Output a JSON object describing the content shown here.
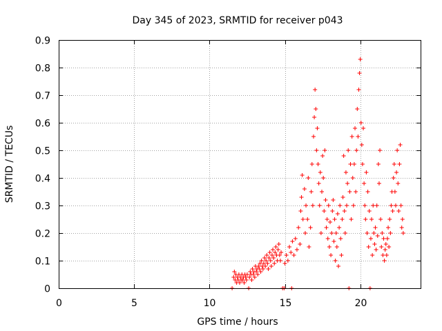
{
  "chart_data": {
    "type": "scatter",
    "title": "Day 345 of 2023, SRMTID for receiver p043",
    "xlabel": "GPS time / hours",
    "ylabel": "SRMTID / TECUs",
    "xlim": [
      0,
      24
    ],
    "ylim": [
      0,
      0.9
    ],
    "grid": true,
    "legend": "none",
    "marker": "plus",
    "color": "#ff0000",
    "x_ticks": [
      "0",
      "5",
      "10",
      "15",
      "20"
    ],
    "x_tick_values": [
      0,
      5,
      10,
      15,
      20
    ],
    "y_ticks": [
      "0",
      "0.1",
      "0.2",
      "0.3",
      "0.4",
      "0.5",
      "0.6",
      "0.7",
      "0.8",
      "0.9"
    ],
    "y_tick_values": [
      0,
      0.1,
      0.2,
      0.3,
      0.4,
      0.5,
      0.6,
      0.7,
      0.8,
      0.9
    ],
    "series": [
      {
        "name": "SRMTID",
        "points": [
          [
            11.5,
            0.0
          ],
          [
            11.6,
            0.04
          ],
          [
            11.65,
            0.06
          ],
          [
            11.7,
            0.03
          ],
          [
            11.75,
            0.05
          ],
          [
            11.8,
            0.02
          ],
          [
            11.85,
            0.04
          ],
          [
            11.9,
            0.03
          ],
          [
            11.95,
            0.05
          ],
          [
            12.0,
            0.02
          ],
          [
            12.05,
            0.04
          ],
          [
            12.1,
            0.03
          ],
          [
            12.15,
            0.05
          ],
          [
            12.2,
            0.03
          ],
          [
            12.25,
            0.04
          ],
          [
            12.3,
            0.02
          ],
          [
            12.35,
            0.05
          ],
          [
            12.4,
            0.04
          ],
          [
            12.45,
            0.03
          ],
          [
            12.5,
            0.05
          ],
          [
            12.6,
            0.0
          ],
          [
            12.65,
            0.04
          ],
          [
            12.7,
            0.06
          ],
          [
            12.75,
            0.05
          ],
          [
            12.8,
            0.03
          ],
          [
            12.85,
            0.07
          ],
          [
            12.9,
            0.05
          ],
          [
            12.95,
            0.06
          ],
          [
            13.0,
            0.04
          ],
          [
            13.05,
            0.08
          ],
          [
            13.1,
            0.06
          ],
          [
            13.15,
            0.07
          ],
          [
            13.2,
            0.05
          ],
          [
            13.25,
            0.08
          ],
          [
            13.3,
            0.07
          ],
          [
            13.35,
            0.09
          ],
          [
            13.4,
            0.06
          ],
          [
            13.45,
            0.1
          ],
          [
            13.5,
            0.08
          ],
          [
            13.55,
            0.07
          ],
          [
            13.6,
            0.09
          ],
          [
            13.65,
            0.11
          ],
          [
            13.7,
            0.08
          ],
          [
            13.75,
            0.1
          ],
          [
            13.8,
            0.12
          ],
          [
            13.85,
            0.09
          ],
          [
            13.9,
            0.07
          ],
          [
            13.95,
            0.11
          ],
          [
            14.0,
            0.13
          ],
          [
            14.05,
            0.1
          ],
          [
            14.1,
            0.08
          ],
          [
            14.15,
            0.12
          ],
          [
            14.2,
            0.14
          ],
          [
            14.25,
            0.11
          ],
          [
            14.3,
            0.09
          ],
          [
            14.35,
            0.13
          ],
          [
            14.4,
            0.15
          ],
          [
            14.45,
            0.12
          ],
          [
            14.5,
            0.1
          ],
          [
            14.55,
            0.14
          ],
          [
            14.6,
            0.16
          ],
          [
            14.65,
            0.12
          ],
          [
            14.7,
            0.1
          ],
          [
            14.75,
            0.13
          ],
          [
            14.85,
            0.0
          ],
          [
            14.95,
            0.0
          ],
          [
            15.0,
            0.09
          ],
          [
            15.1,
            0.12
          ],
          [
            15.2,
            0.1
          ],
          [
            15.3,
            0.15
          ],
          [
            15.4,
            0.13
          ],
          [
            15.45,
            0.0
          ],
          [
            15.5,
            0.17
          ],
          [
            15.6,
            0.12
          ],
          [
            15.7,
            0.18
          ],
          [
            15.8,
            0.14
          ],
          [
            15.9,
            0.22
          ],
          [
            16.0,
            0.16
          ],
          [
            16.05,
            0.28
          ],
          [
            16.1,
            0.33
          ],
          [
            16.15,
            0.41
          ],
          [
            16.2,
            0.25
          ],
          [
            16.3,
            0.36
          ],
          [
            16.35,
            0.2
          ],
          [
            16.4,
            0.3
          ],
          [
            16.5,
            0.25
          ],
          [
            16.55,
            0.4
          ],
          [
            16.6,
            0.15
          ],
          [
            16.7,
            0.22
          ],
          [
            16.75,
            0.35
          ],
          [
            16.8,
            0.45
          ],
          [
            16.85,
            0.3
          ],
          [
            16.9,
            0.55
          ],
          [
            16.95,
            0.62
          ],
          [
            17.0,
            0.72
          ],
          [
            17.05,
            0.65
          ],
          [
            17.1,
            0.5
          ],
          [
            17.15,
            0.58
          ],
          [
            17.2,
            0.45
          ],
          [
            17.25,
            0.38
          ],
          [
            17.3,
            0.3
          ],
          [
            17.35,
            0.42
          ],
          [
            17.4,
            0.2
          ],
          [
            17.45,
            0.35
          ],
          [
            17.5,
            0.48
          ],
          [
            17.55,
            0.4
          ],
          [
            17.6,
            0.28
          ],
          [
            17.65,
            0.5
          ],
          [
            17.7,
            0.32
          ],
          [
            17.75,
            0.22
          ],
          [
            17.8,
            0.25
          ],
          [
            17.85,
            0.18
          ],
          [
            17.9,
            0.3
          ],
          [
            17.95,
            0.15
          ],
          [
            18.0,
            0.24
          ],
          [
            18.05,
            0.12
          ],
          [
            18.1,
            0.2
          ],
          [
            18.15,
            0.28
          ],
          [
            18.2,
            0.32
          ],
          [
            18.25,
            0.17
          ],
          [
            18.3,
            0.25
          ],
          [
            18.35,
            0.1
          ],
          [
            18.4,
            0.2
          ],
          [
            18.45,
            0.15
          ],
          [
            18.5,
            0.27
          ],
          [
            18.55,
            0.08
          ],
          [
            18.6,
            0.22
          ],
          [
            18.65,
            0.3
          ],
          [
            18.7,
            0.18
          ],
          [
            18.75,
            0.12
          ],
          [
            18.8,
            0.25
          ],
          [
            18.85,
            0.33
          ],
          [
            18.9,
            0.48
          ],
          [
            18.95,
            0.28
          ],
          [
            19.0,
            0.2
          ],
          [
            19.05,
            0.42
          ],
          [
            19.1,
            0.3
          ],
          [
            19.15,
            0.38
          ],
          [
            19.2,
            0.5
          ],
          [
            19.25,
            0.0
          ],
          [
            19.3,
            0.35
          ],
          [
            19.35,
            0.45
          ],
          [
            19.4,
            0.25
          ],
          [
            19.45,
            0.55
          ],
          [
            19.5,
            0.4
          ],
          [
            19.55,
            0.3
          ],
          [
            19.6,
            0.45
          ],
          [
            19.65,
            0.58
          ],
          [
            19.7,
            0.35
          ],
          [
            19.75,
            0.5
          ],
          [
            19.8,
            0.65
          ],
          [
            19.85,
            0.55
          ],
          [
            19.9,
            0.72
          ],
          [
            19.95,
            0.78
          ],
          [
            20.0,
            0.83
          ],
          [
            20.05,
            0.6
          ],
          [
            20.1,
            0.52
          ],
          [
            20.15,
            0.45
          ],
          [
            20.2,
            0.58
          ],
          [
            20.25,
            0.38
          ],
          [
            20.3,
            0.3
          ],
          [
            20.35,
            0.25
          ],
          [
            20.4,
            0.42
          ],
          [
            20.45,
            0.2
          ],
          [
            20.5,
            0.35
          ],
          [
            20.55,
            0.15
          ],
          [
            20.6,
            0.28
          ],
          [
            20.65,
            0.0
          ],
          [
            20.7,
            0.18
          ],
          [
            20.75,
            0.25
          ],
          [
            20.8,
            0.12
          ],
          [
            20.85,
            0.3
          ],
          [
            20.9,
            0.2
          ],
          [
            20.95,
            0.16
          ],
          [
            21.0,
            0.22
          ],
          [
            21.05,
            0.14
          ],
          [
            21.1,
            0.3
          ],
          [
            21.15,
            0.19
          ],
          [
            21.2,
            0.45
          ],
          [
            21.25,
            0.38
          ],
          [
            21.3,
            0.5
          ],
          [
            21.35,
            0.25
          ],
          [
            21.4,
            0.15
          ],
          [
            21.45,
            0.2
          ],
          [
            21.5,
            0.12
          ],
          [
            21.55,
            0.18
          ],
          [
            21.6,
            0.1
          ],
          [
            21.65,
            0.14
          ],
          [
            21.7,
            0.16
          ],
          [
            21.75,
            0.12
          ],
          [
            21.8,
            0.18
          ],
          [
            21.85,
            0.22
          ],
          [
            21.9,
            0.15
          ],
          [
            21.95,
            0.25
          ],
          [
            22.0,
            0.2
          ],
          [
            22.05,
            0.3
          ],
          [
            22.1,
            0.35
          ],
          [
            22.15,
            0.28
          ],
          [
            22.2,
            0.4
          ],
          [
            22.25,
            0.45
          ],
          [
            22.3,
            0.35
          ],
          [
            22.35,
            0.3
          ],
          [
            22.4,
            0.42
          ],
          [
            22.45,
            0.5
          ],
          [
            22.5,
            0.38
          ],
          [
            22.55,
            0.28
          ],
          [
            22.6,
            0.45
          ],
          [
            22.65,
            0.52
          ],
          [
            22.7,
            0.3
          ],
          [
            22.75,
            0.22
          ],
          [
            22.8,
            0.25
          ],
          [
            22.85,
            0.2
          ]
        ]
      }
    ]
  }
}
